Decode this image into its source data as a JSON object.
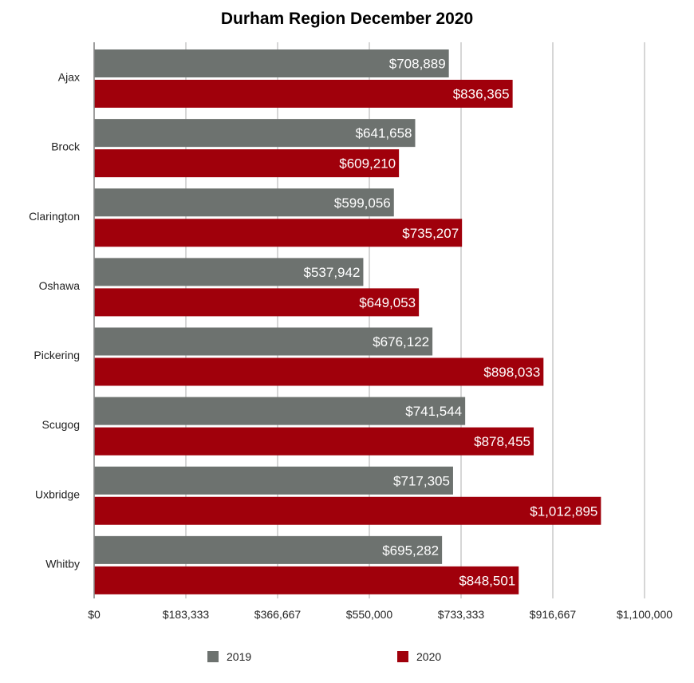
{
  "chart_data": {
    "type": "bar",
    "orientation": "horizontal",
    "title": "Durham Region December 2020",
    "xlabel": "",
    "ylabel": "",
    "categories": [
      "Ajax",
      "Brock",
      "Clarington",
      "Oshawa",
      "Pickering",
      "Scugog",
      "Uxbridge",
      "Whitby"
    ],
    "series": [
      {
        "name": "2019",
        "color": "#6d726f",
        "values": [
          708889,
          641658,
          599056,
          537942,
          676122,
          741544,
          717305,
          695282
        ],
        "labels": [
          "$708,889",
          "$641,658",
          "$599,056",
          "$537,942",
          "$676,122",
          "$741,544",
          "$717,305",
          "$695,282"
        ]
      },
      {
        "name": "2020",
        "color": "#a0000b",
        "values": [
          836365,
          609210,
          735207,
          649053,
          898033,
          878455,
          1012895,
          848501
        ],
        "labels": [
          "$836,365",
          "$609,210",
          "$735,207",
          "$649,053",
          "$898,033",
          "$878,455",
          "$1,012,895",
          "$848,501"
        ]
      }
    ],
    "xlim": [
      0,
      1100000
    ],
    "xticks": [
      0,
      183333,
      366667,
      550000,
      733333,
      916667,
      1100000
    ],
    "xtick_labels": [
      "$0",
      "$183,333",
      "$366,667",
      "$550,000",
      "$733,333",
      "$916,667",
      "$1,100,000"
    ],
    "grid": true,
    "legend_position": "bottom"
  }
}
